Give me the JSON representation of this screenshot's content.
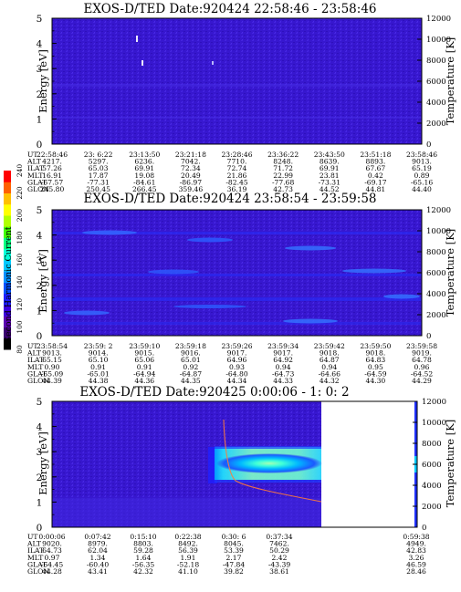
{
  "chart_data": [
    {
      "type": "heatmap",
      "title": "EXOS-D/TED   Date:920424  22:58:46 - 23:58:46",
      "ylabel": "Energy [eV]",
      "ylabel_right": "Temperature [K]",
      "ylim": [
        0,
        5
      ],
      "y_ticks": [
        "0",
        "1",
        "2",
        "3",
        "4",
        "5"
      ],
      "ylim_right": [
        0,
        12000
      ],
      "y_right_ticks": [
        "0",
        "2000",
        "4000",
        "6000",
        "8000",
        "10000",
        "12000"
      ],
      "annotation_rows": [
        {
          "label": "UT",
          "values": [
            "22:58:46",
            "23: 6:22",
            "23:13:50",
            "23:21:18",
            "23:28:46",
            "23:36:22",
            "23:43:50",
            "23:51:18",
            "23:58:46"
          ]
        },
        {
          "label": "ALT",
          "values": [
            "4217.",
            "5297.",
            "6236.",
            "7042.",
            "7710.",
            "8248.",
            "8639.",
            "8893.",
            "9013."
          ]
        },
        {
          "label": "ILAT",
          "values": [
            "57.26",
            "65.03",
            "69.91",
            "72.34",
            "72.74",
            "71.72",
            "69.91",
            "67.67",
            "65.19"
          ]
        },
        {
          "label": "MLT",
          "values": [
            "16.91",
            "17.87",
            "19.08",
            "20.49",
            "21.86",
            "22.99",
            "23.81",
            "0.42",
            "0.89"
          ]
        },
        {
          "label": "GLAT",
          "values": [
            "-67.57",
            "-77.31",
            "-84.61",
            "-86.97",
            "-82.45",
            "-77.68",
            "-73.31",
            "-69.17",
            "-65.16"
          ]
        },
        {
          "label": "GLON",
          "values": [
            "245.80",
            "250.45",
            "266.45",
            "359.46",
            "36.19",
            "42.73",
            "44.52",
            "44.81",
            "44.40"
          ]
        }
      ]
    },
    {
      "type": "heatmap",
      "title": "EXOS-D/TED   Date:920424  23:58:54 - 23:59:58",
      "ylabel": "Energy [eV]",
      "ylabel_right": "Temperature [K]",
      "ylim": [
        0,
        5
      ],
      "y_ticks": [
        "0",
        "1",
        "2",
        "3",
        "4",
        "5"
      ],
      "ylim_right": [
        0,
        12000
      ],
      "y_right_ticks": [
        "0",
        "2000",
        "4000",
        "6000",
        "8000",
        "10000",
        "12000"
      ],
      "annotation_rows": [
        {
          "label": "UT",
          "values": [
            "23:58:54",
            "23:59: 2",
            "23:59:10",
            "23:59:18",
            "23:59:26",
            "23:59:34",
            "23:59:42",
            "23:59:50",
            "23:59:58"
          ]
        },
        {
          "label": "ALT",
          "values": [
            "9013.",
            "9014.",
            "9015.",
            "9016.",
            "9017.",
            "9017.",
            "9018.",
            "9018.",
            "9019."
          ]
        },
        {
          "label": "ILAT",
          "values": [
            "65.15",
            "65.10",
            "65.06",
            "65.01",
            "64.96",
            "64.92",
            "64.87",
            "64.83",
            "64.78"
          ]
        },
        {
          "label": "MLT",
          "values": [
            "0.90",
            "0.91",
            "0.91",
            "0.92",
            "0.93",
            "0.94",
            "0.94",
            "0.95",
            "0.96"
          ]
        },
        {
          "label": "GLAT",
          "values": [
            "-65.09",
            "-65.01",
            "-64.94",
            "-64.87",
            "-64.80",
            "-64.73",
            "-64.66",
            "-64.59",
            "-64.52"
          ]
        },
        {
          "label": "GLON",
          "values": [
            "44.39",
            "44.38",
            "44.36",
            "44.35",
            "44.34",
            "44.33",
            "44.32",
            "44.30",
            "44.29"
          ]
        }
      ]
    },
    {
      "type": "heatmap",
      "title": "EXOS-D/TED   Date:920425   0:00:06 - 1: 0: 2",
      "ylabel": "Energy [eV]",
      "ylabel_right": "Temperature [K]",
      "ylim": [
        0,
        5
      ],
      "y_ticks": [
        "0",
        "1",
        "2",
        "3",
        "4",
        "5"
      ],
      "ylim_right": [
        0,
        12000
      ],
      "y_right_ticks": [
        "0",
        "2000",
        "4000",
        "6000",
        "8000",
        "10000",
        "12000"
      ],
      "annotation_rows": [
        {
          "label": "UT",
          "values": [
            "0:00:06",
            "0:07:42",
            "0:15:10",
            "0:22:38",
            "0:30: 6",
            "0:37:34",
            "0:59:38"
          ]
        },
        {
          "label": "ALT",
          "values": [
            "9020.",
            "8979.",
            "8803.",
            "8492.",
            "8045.",
            "7462.",
            "4949."
          ]
        },
        {
          "label": "ILAT",
          "values": [
            "64.73",
            "62.04",
            "59.28",
            "56.39",
            "53.39",
            "50.29",
            "42.83"
          ]
        },
        {
          "label": "MLT",
          "values": [
            "0.97",
            "1.34",
            "1.64",
            "1.91",
            "2.17",
            "2.42",
            "3.26"
          ]
        },
        {
          "label": "GLAT",
          "values": [
            "-64.45",
            "-60.40",
            "-56.35",
            "-52.18",
            "-47.84",
            "-43.39",
            "46.59"
          ]
        },
        {
          "label": "GLON",
          "values": [
            "44.28",
            "43.41",
            "42.32",
            "41.10",
            "39.82",
            "38.61",
            "28.46"
          ]
        }
      ]
    }
  ],
  "colorbar": {
    "label": "Second Harmonic Current",
    "ticks": [
      "80",
      "100",
      "120",
      "140",
      "160",
      "180",
      "200",
      "220",
      "240"
    ],
    "colors": [
      "#000000",
      "#3a0070",
      "#5a00b0",
      "#3c00e0",
      "#1e1eff",
      "#0050ff",
      "#0090ff",
      "#00c8ff",
      "#00ffd8",
      "#00ff80",
      "#40ff00",
      "#b0ff00",
      "#ffff00",
      "#ffc000",
      "#ff6000",
      "#ff0000"
    ]
  }
}
